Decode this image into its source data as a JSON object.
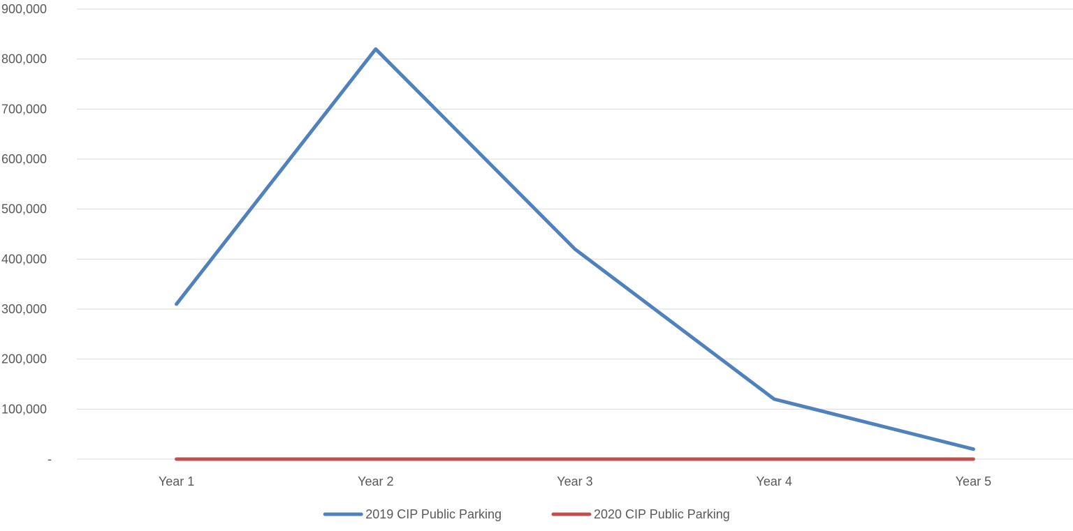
{
  "chart_data": {
    "type": "line",
    "title": "",
    "xlabel": "",
    "ylabel": "",
    "categories": [
      "Year 1",
      "Year 2",
      "Year 3",
      "Year 4",
      "Year 5"
    ],
    "ylim": [
      0,
      900000
    ],
    "yticks": [
      0,
      100000,
      200000,
      300000,
      400000,
      500000,
      600000,
      700000,
      800000,
      900000
    ],
    "ytick_labels": [
      "-",
      "100,000",
      "200,000",
      "300,000",
      "400,000",
      "500,000",
      "600,000",
      "700,000",
      "800,000",
      "900,000"
    ],
    "grid": true,
    "legend_position": "bottom",
    "series": [
      {
        "name": "2019 CIP Public Parking",
        "color": "#4f81bd",
        "values": [
          310000,
          820000,
          420000,
          120000,
          20000
        ]
      },
      {
        "name": "2020 CIP Public Parking",
        "color": "#c0504d",
        "values": [
          0,
          0,
          0,
          0,
          0
        ]
      }
    ]
  }
}
